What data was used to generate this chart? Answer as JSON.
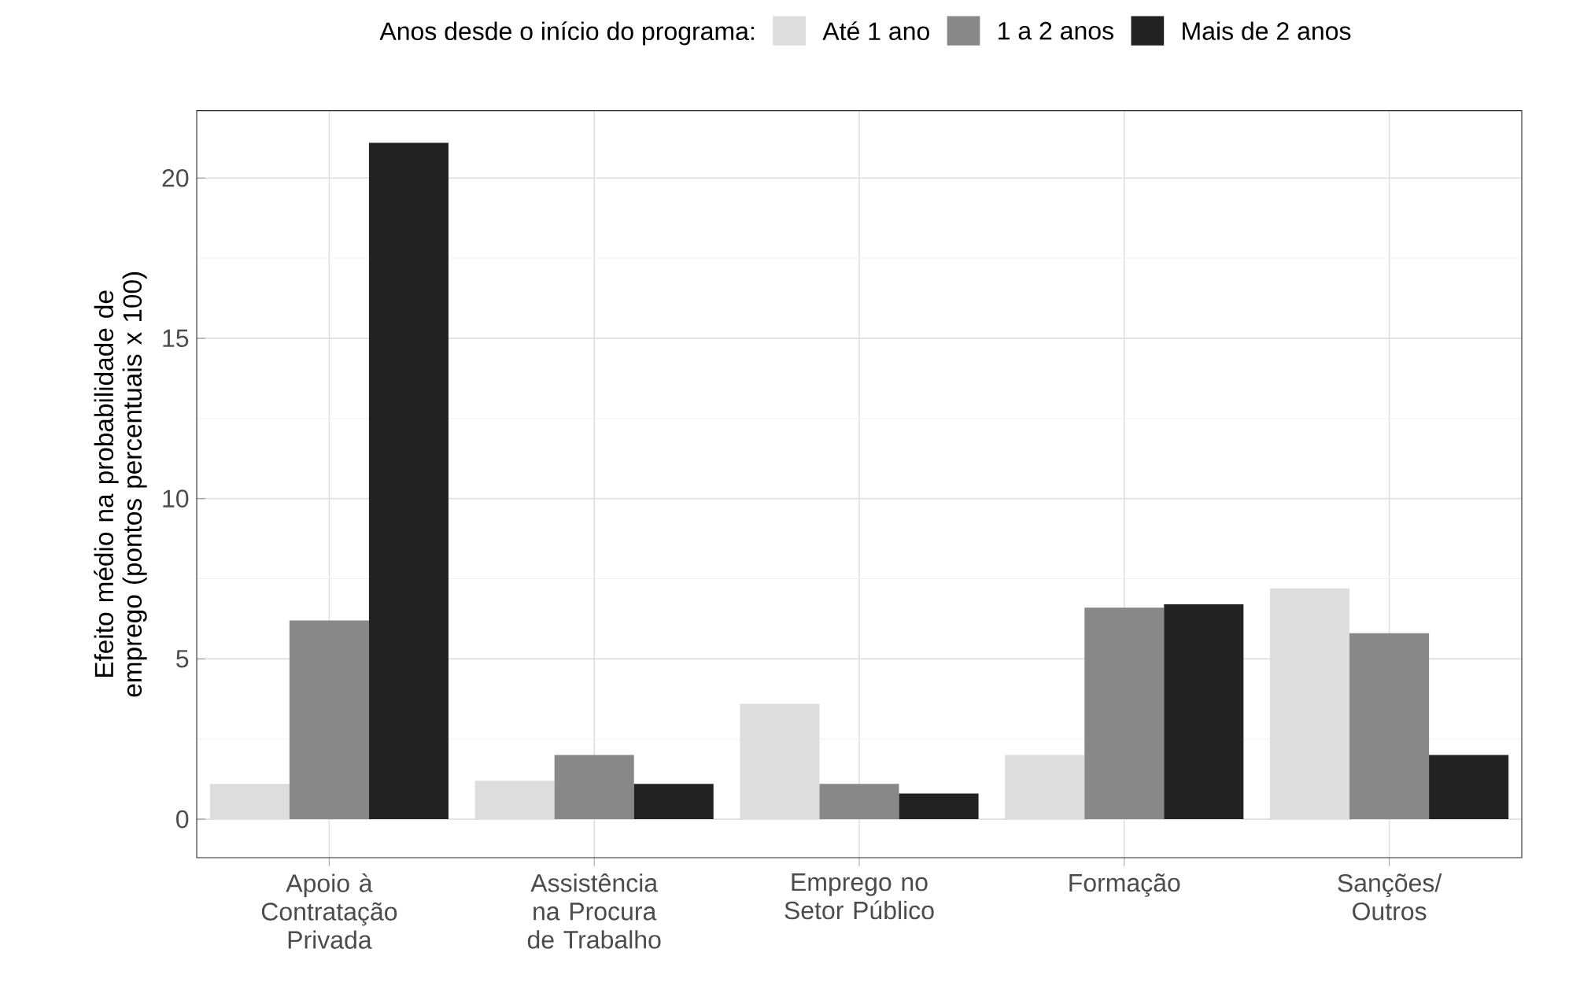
{
  "chart_data": {
    "type": "bar",
    "ylabel": "Efeito médio na probabilidade de emprego (pontos percentuais x 100)",
    "legend_title": "Anos desde o início do programa:",
    "categories": [
      "Apoio à Contratação Privada",
      "Assistência na Procura de Trabalho",
      "Emprego no Setor Público",
      "Formação",
      "Sanções/ Outros"
    ],
    "series": [
      {
        "name": "Até 1 ano",
        "color": "#dddddd",
        "values": [
          1.1,
          1.2,
          3.6,
          2.0,
          7.2
        ]
      },
      {
        "name": "1 a 2 anos",
        "color": "#888888",
        "values": [
          6.2,
          2.0,
          1.1,
          6.6,
          5.8
        ]
      },
      {
        "name": "Mais de 2 anos",
        "color": "#222222",
        "values": [
          21.1,
          1.1,
          0.8,
          6.7,
          2.0
        ]
      }
    ],
    "ylim": [
      -1.2,
      22.1
    ],
    "yticks": [
      0,
      5,
      10,
      15,
      20
    ],
    "grid": true,
    "legend": "top"
  }
}
